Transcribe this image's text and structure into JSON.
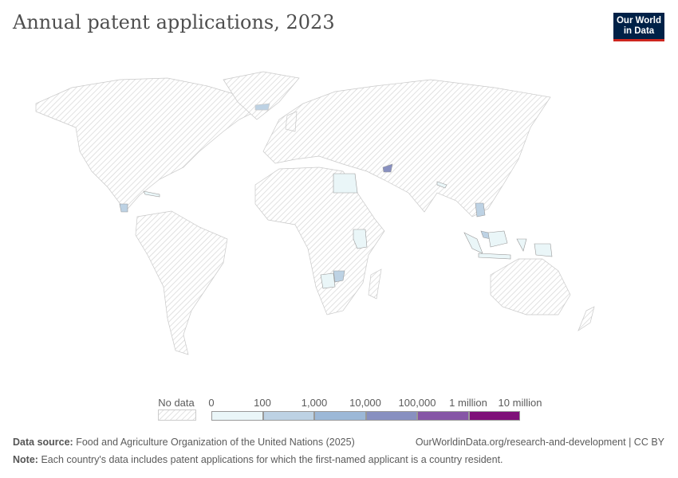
{
  "title": "Annual patent applications, 2023",
  "logo": {
    "line1": "Our World",
    "line2": "in Data"
  },
  "legend": {
    "no_data_label": "No data",
    "bins": [
      {
        "label": "0",
        "color": "#eaf6f8"
      },
      {
        "label": "100",
        "color": "#bdd2e4"
      },
      {
        "label": "1,000",
        "color": "#9cb8d7"
      },
      {
        "label": "10,000",
        "color": "#8890c0"
      },
      {
        "label": "100,000",
        "color": "#8656a6"
      },
      {
        "label": "1 million",
        "color": "#7f1079"
      },
      {
        "label": "10 million",
        "color": null
      }
    ]
  },
  "footer": {
    "source_label": "Data source:",
    "source_text": "Food and Agriculture Organization of the United Nations (2025)",
    "url": "OurWorldinData.org/research-and-development | CC BY",
    "note_label": "Note:",
    "note_text": "Each country's data includes patent applications for which the first-named applicant is a country resident."
  }
}
